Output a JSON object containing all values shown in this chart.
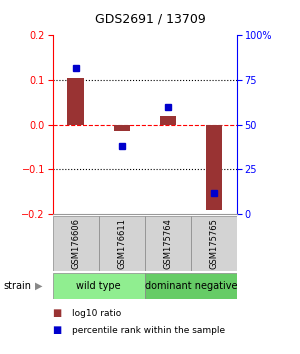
{
  "title": "GDS2691 / 13709",
  "samples": [
    "GSM176606",
    "GSM176611",
    "GSM175764",
    "GSM175765"
  ],
  "log10_ratios": [
    0.105,
    -0.015,
    0.02,
    -0.19
  ],
  "percentile_ranks": [
    82,
    38,
    60,
    12
  ],
  "groups": [
    {
      "label": "wild type",
      "samples": [
        0,
        1
      ],
      "color": "#90ee90"
    },
    {
      "label": "dominant negative",
      "samples": [
        2,
        3
      ],
      "color": "#66cc66"
    }
  ],
  "bar_color": "#993333",
  "dot_color": "#0000cc",
  "ylim": [
    -0.2,
    0.2
  ],
  "y2lim": [
    0,
    100
  ],
  "yticks": [
    -0.2,
    -0.1,
    0,
    0.1,
    0.2
  ],
  "y2ticks": [
    0,
    25,
    50,
    75,
    100
  ],
  "hline_dashed_black": [
    -0.1,
    0.1
  ],
  "hline_dashed_red": 0,
  "legend_items": [
    {
      "label": "log10 ratio",
      "color": "#993333"
    },
    {
      "label": "percentile rank within the sample",
      "color": "#0000cc"
    }
  ],
  "strain_label": "strain",
  "bar_width": 0.35,
  "cell_color": "#d3d3d3",
  "title_fontsize": 9,
  "axis_fontsize": 7,
  "sample_fontsize": 6,
  "group_fontsize": 7,
  "legend_fontsize": 6.5
}
